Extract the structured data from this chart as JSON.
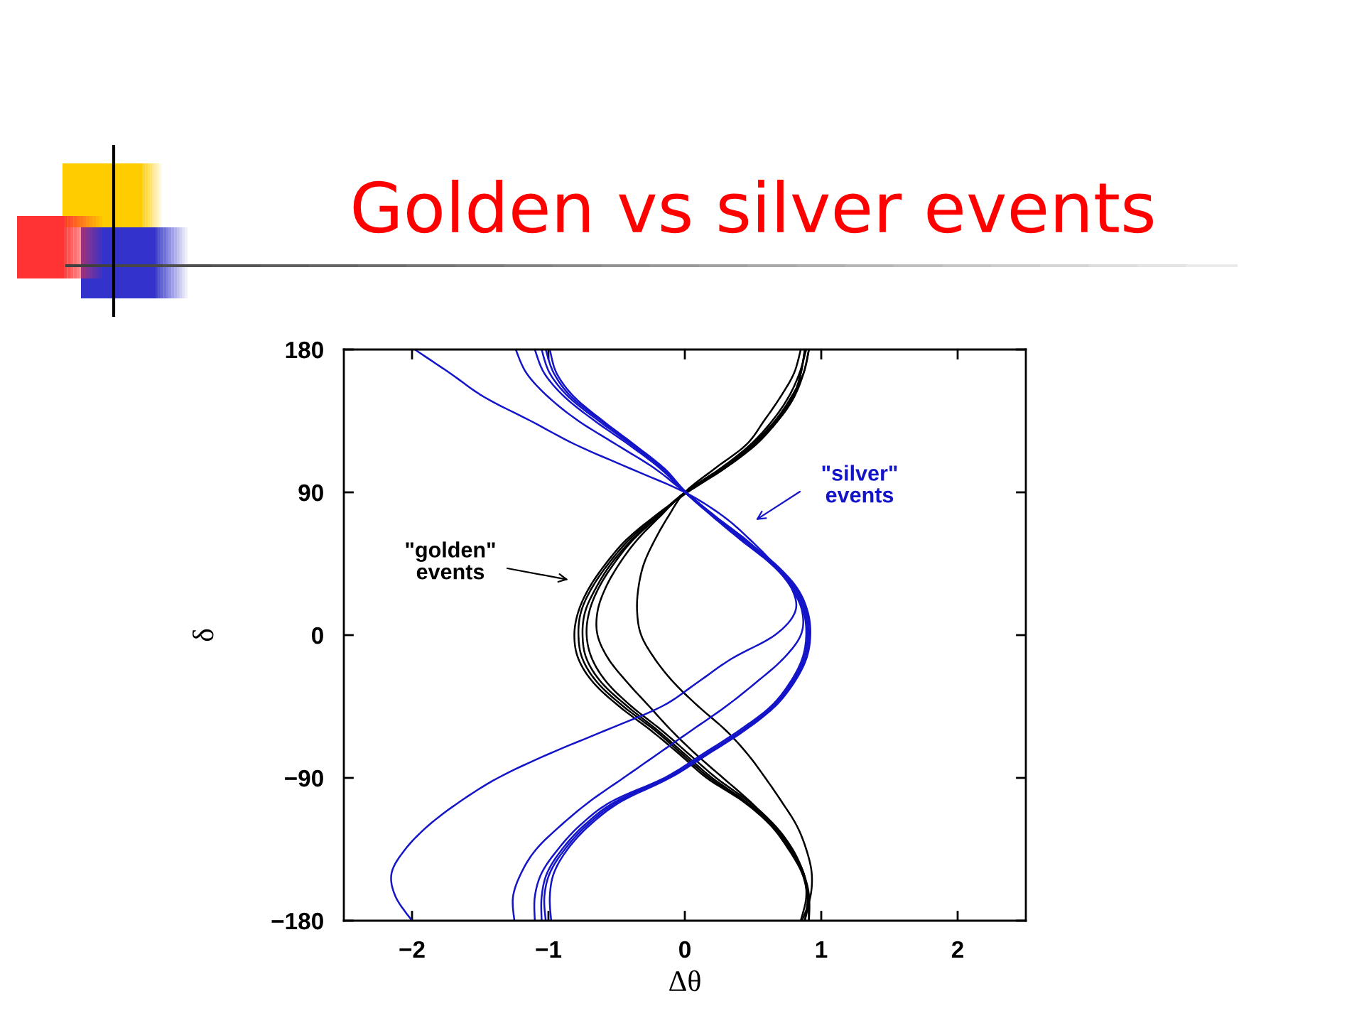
{
  "chart_data": {
    "type": "line",
    "title": "Golden vs silver events",
    "xlabel": "Δθ",
    "ylabel": "δ",
    "xlim": [
      -2.5,
      2.5
    ],
    "ylim": [
      -180,
      180
    ],
    "xticks": [
      {
        "value": -2,
        "label": "−2"
      },
      {
        "value": -1,
        "label": "−1"
      },
      0,
      1,
      2
    ],
    "yticks": [
      {
        "value": -180,
        "label": "−180"
      },
      {
        "value": -90,
        "label": "−90"
      },
      0,
      90,
      180
    ],
    "annotations": [
      "\"golden\"\nevents",
      "\"silver\"\nevents"
    ],
    "series": [
      {
        "color": "#000000",
        "x": [
          0.91,
          0.87,
          0.8,
          0.68,
          0.51,
          0.29,
          0.02,
          -0.22,
          -0.43,
          -0.58,
          -0.7,
          -0.78,
          -0.81,
          -0.78,
          -0.67,
          -0.48,
          -0.25,
          -0.04,
          0.16,
          0.43,
          0.63,
          0.76,
          0.86,
          0.91,
          0.91
        ],
        "values": [
          180,
          165,
          150,
          135,
          120,
          105,
          90,
          75,
          60,
          45,
          30,
          15,
          0,
          -15,
          -30,
          -45,
          -60,
          -75,
          -90,
          -105,
          -120,
          -135,
          -150,
          -165,
          -180
        ]
      },
      {
        "color": "#000000",
        "x": [
          0.88,
          0.85,
          0.79,
          0.67,
          0.5,
          0.28,
          0.01,
          -0.21,
          -0.41,
          -0.56,
          -0.68,
          -0.76,
          -0.78,
          -0.75,
          -0.64,
          -0.45,
          -0.22,
          -0.02,
          0.18,
          0.44,
          0.64,
          0.77,
          0.86,
          0.9,
          0.91
        ],
        "values": [
          180,
          165,
          150,
          135,
          120,
          105,
          90,
          75,
          60,
          45,
          30,
          15,
          0,
          -15,
          -30,
          -45,
          -60,
          -75,
          -90,
          -105,
          -120,
          -135,
          -150,
          -165,
          -180
        ]
      },
      {
        "color": "#000000",
        "x": [
          0.91,
          0.87,
          0.78,
          0.66,
          0.49,
          0.27,
          0.0,
          -0.2,
          -0.39,
          -0.54,
          -0.65,
          -0.73,
          -0.75,
          -0.72,
          -0.61,
          -0.42,
          -0.2,
          0.0,
          0.2,
          0.45,
          0.65,
          0.78,
          0.87,
          0.9,
          0.88
        ],
        "values": [
          180,
          165,
          150,
          135,
          120,
          105,
          90,
          75,
          60,
          45,
          30,
          15,
          0,
          -15,
          -30,
          -45,
          -60,
          -75,
          -90,
          -105,
          -120,
          -135,
          -150,
          -165,
          -180
        ]
      },
      {
        "color": "#000000",
        "x": [
          0.88,
          0.85,
          0.8,
          0.68,
          0.52,
          0.29,
          0.01,
          -0.19,
          -0.38,
          -0.52,
          -0.63,
          -0.7,
          -0.72,
          -0.68,
          -0.57,
          -0.39,
          -0.17,
          0.03,
          0.23,
          0.47,
          0.66,
          0.79,
          0.87,
          0.91,
          0.88
        ],
        "values": [
          180,
          165,
          150,
          135,
          120,
          105,
          90,
          75,
          60,
          45,
          30,
          15,
          0,
          -15,
          -30,
          -45,
          -60,
          -75,
          -90,
          -105,
          -120,
          -135,
          -150,
          -165,
          -180
        ]
      },
      {
        "color": "#000000",
        "x": [
          0.89,
          0.84,
          0.76,
          0.64,
          0.48,
          0.26,
          0.0,
          -0.18,
          -0.35,
          -0.48,
          -0.58,
          -0.64,
          -0.64,
          -0.56,
          -0.42,
          -0.26,
          -0.1,
          0.08,
          0.28,
          0.48,
          0.65,
          0.78,
          0.87,
          0.89,
          0.85
        ],
        "values": [
          180,
          165,
          150,
          135,
          120,
          105,
          90,
          75,
          60,
          45,
          30,
          15,
          0,
          -15,
          -30,
          -45,
          -60,
          -75,
          -90,
          -105,
          -120,
          -135,
          -150,
          -165,
          -180
        ]
      },
      {
        "color": "#000000",
        "x": [
          0.85,
          0.8,
          0.7,
          0.58,
          0.45,
          0.22,
          0.0,
          -0.12,
          -0.22,
          -0.3,
          -0.34,
          -0.35,
          -0.32,
          -0.22,
          -0.08,
          0.1,
          0.3,
          0.46,
          0.59,
          0.71,
          0.82,
          0.89,
          0.93,
          0.92,
          0.86
        ],
        "values": [
          180,
          165,
          150,
          135,
          120,
          105,
          90,
          75,
          60,
          45,
          30,
          15,
          0,
          -15,
          -30,
          -45,
          -60,
          -75,
          -90,
          -105,
          -120,
          -135,
          -150,
          -165,
          -180
        ]
      },
      {
        "color": "#1414c8",
        "x": [
          -1.98,
          -1.72,
          -1.47,
          -1.13,
          -0.8,
          -0.4,
          0.0,
          0.28,
          0.48,
          0.65,
          0.78,
          0.81,
          0.66,
          0.34,
          0.09,
          -0.17,
          -0.58,
          -1.0,
          -1.37,
          -1.65,
          -1.88,
          -2.05,
          -2.15,
          -2.12,
          -2.0
        ],
        "values": [
          180,
          165,
          150,
          135,
          120,
          105,
          90,
          75,
          60,
          45,
          30,
          15,
          0,
          -15,
          -30,
          -45,
          -60,
          -75,
          -90,
          -105,
          -120,
          -135,
          -150,
          -165,
          -180
        ]
      },
      {
        "color": "#1414c8",
        "x": [
          -1.24,
          -1.16,
          -1.0,
          -0.78,
          -0.5,
          -0.22,
          0.0,
          0.22,
          0.45,
          0.64,
          0.78,
          0.86,
          0.85,
          0.72,
          0.52,
          0.3,
          0.05,
          -0.2,
          -0.45,
          -0.7,
          -0.91,
          -1.09,
          -1.2,
          -1.26,
          -1.25
        ],
        "values": [
          180,
          165,
          150,
          135,
          120,
          105,
          90,
          75,
          60,
          45,
          30,
          15,
          0,
          -15,
          -30,
          -45,
          -60,
          -75,
          -90,
          -105,
          -120,
          -135,
          -150,
          -165,
          -180
        ]
      },
      {
        "color": "#1414c8",
        "x": [
          -1.1,
          -1.03,
          -0.88,
          -0.66,
          -0.41,
          -0.18,
          0.0,
          0.2,
          0.41,
          0.63,
          0.79,
          0.87,
          0.89,
          0.86,
          0.77,
          0.63,
          0.4,
          0.13,
          -0.15,
          -0.54,
          -0.77,
          -0.93,
          -1.05,
          -1.1,
          -1.1
        ],
        "values": [
          180,
          165,
          150,
          135,
          120,
          105,
          90,
          75,
          60,
          45,
          30,
          15,
          0,
          -15,
          -30,
          -45,
          -60,
          -75,
          -90,
          -105,
          -120,
          -135,
          -150,
          -165,
          -180
        ]
      },
      {
        "color": "#1414c8",
        "x": [
          -1.05,
          -0.99,
          -0.85,
          -0.63,
          -0.39,
          -0.17,
          0.0,
          0.21,
          0.42,
          0.64,
          0.8,
          0.88,
          0.9,
          0.87,
          0.78,
          0.64,
          0.42,
          0.15,
          -0.13,
          -0.51,
          -0.74,
          -0.9,
          -1.01,
          -1.05,
          -1.05
        ],
        "values": [
          180,
          165,
          150,
          135,
          120,
          105,
          90,
          75,
          60,
          45,
          30,
          15,
          0,
          -15,
          -30,
          -45,
          -60,
          -75,
          -90,
          -105,
          -120,
          -135,
          -150,
          -165,
          -180
        ]
      },
      {
        "color": "#1414c8",
        "x": [
          -1.02,
          -0.96,
          -0.83,
          -0.61,
          -0.38,
          -0.16,
          0.01,
          0.22,
          0.43,
          0.65,
          0.81,
          0.89,
          0.91,
          0.88,
          0.79,
          0.65,
          0.43,
          0.16,
          -0.12,
          -0.49,
          -0.72,
          -0.88,
          -0.99,
          -1.03,
          -1.02
        ],
        "values": [
          180,
          165,
          150,
          135,
          120,
          105,
          90,
          75,
          60,
          45,
          30,
          15,
          0,
          -15,
          -30,
          -45,
          -60,
          -75,
          -90,
          -105,
          -120,
          -135,
          -150,
          -165,
          -180
        ]
      },
      {
        "color": "#1414c8",
        "x": [
          -0.99,
          -0.94,
          -0.81,
          -0.6,
          -0.37,
          -0.15,
          0.01,
          0.22,
          0.44,
          0.66,
          0.82,
          0.9,
          0.92,
          0.89,
          0.8,
          0.66,
          0.44,
          0.17,
          -0.11,
          -0.47,
          -0.7,
          -0.86,
          -0.96,
          -0.99,
          -0.98
        ],
        "values": [
          180,
          165,
          150,
          135,
          120,
          105,
          90,
          75,
          60,
          45,
          30,
          15,
          0,
          -15,
          -30,
          -45,
          -60,
          -75,
          -90,
          -105,
          -120,
          -135,
          -150,
          -165,
          -180
        ]
      }
    ]
  }
}
